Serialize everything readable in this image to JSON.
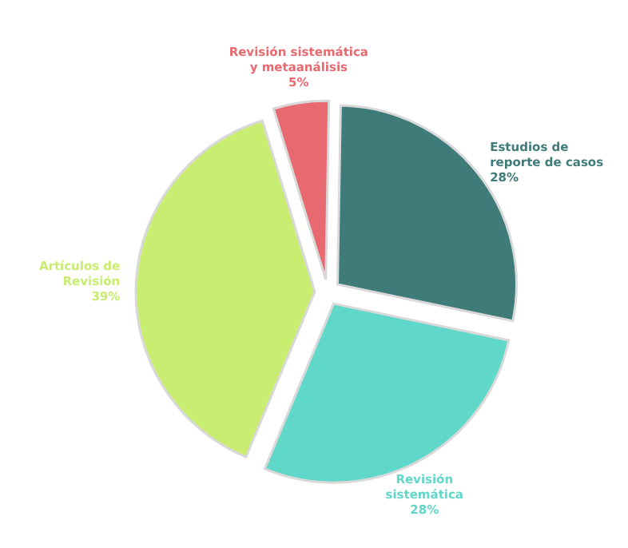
{
  "chart_data": {
    "type": "pie",
    "categories": [
      "Revisión sistemática\ny metaanálisis",
      "Estudios de\nreporte de casos",
      "Revisión\nsistemática",
      "Artículos de\nRevisión"
    ],
    "values": [
      5,
      28,
      28,
      39
    ],
    "value_labels": [
      "5%",
      "28%",
      "28%",
      "39%"
    ],
    "colors": [
      "#e8696f",
      "#3e7b79",
      "#5fd8c9",
      "#c9ed70"
    ]
  }
}
